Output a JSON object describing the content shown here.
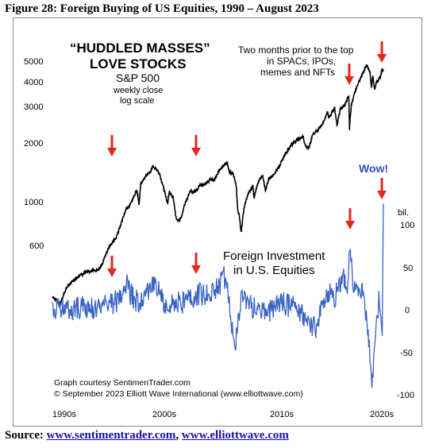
{
  "figure_title": "Figure 28: Foreign Buying of US Equities, 1990 – August 2023",
  "source": {
    "label": "Source:",
    "link1": "www.sentimentrader.com",
    "separator": ",",
    "link2": "www.elliottwave.com"
  },
  "annotations": {
    "headline_line1": "“HUDDLED MASSES”",
    "headline_line2": "LOVE STOCKS",
    "sp_label": "S&P 500",
    "sp_sub1": "weekly close",
    "sp_sub2": "log scale",
    "note_line1": "Two months prior to the top",
    "note_line2": "in SPACs, IPOs,",
    "note_line3": "memes and NFTs",
    "foreign_line1": "Foreign Investment",
    "foreign_line2": "in U.S. Equities",
    "wow": "Wow!",
    "credit_line1": "Graph courtesy SentimenTrader.com",
    "credit_line2": "© September 2023 Elliott Wave International (www.elliottwave.com)",
    "right_unit": "bil."
  },
  "colors": {
    "sp500": "#000000",
    "foreign": "#3a63c4",
    "arrows": "#e0281f",
    "wow": "#2f4fb8"
  },
  "chart_data": [
    {
      "type": "line",
      "scale": "log",
      "x_axis": {
        "range": [
          1990,
          2023.67
        ],
        "tick_labels": [
          "1990s",
          "2000s",
          "2010s",
          "2020s"
        ],
        "tick_values": [
          1990,
          2000,
          2010,
          2020
        ]
      },
      "y_axis": {
        "side": "left",
        "tick_values": [
          600,
          1000,
          2000,
          3000,
          4000,
          5000
        ],
        "tick_labels": [
          "600",
          "1000",
          "2000",
          "3000",
          "4000",
          "5000"
        ]
      },
      "series": [
        {
          "name": "S&P 500",
          "points": [
            [
              1990.0,
              340
            ],
            [
              1990.8,
              310
            ],
            [
              1991.5,
              380
            ],
            [
              1992.5,
              420
            ],
            [
              1993.5,
              450
            ],
            [
              1994.5,
              455
            ],
            [
              1995.0,
              480
            ],
            [
              1995.5,
              560
            ],
            [
              1996.0,
              620
            ],
            [
              1996.5,
              660
            ],
            [
              1997.0,
              780
            ],
            [
              1997.5,
              920
            ],
            [
              1998.0,
              980
            ],
            [
              1998.6,
              1150
            ],
            [
              1998.8,
              960
            ],
            [
              1999.0,
              1230
            ],
            [
              1999.5,
              1340
            ],
            [
              2000.0,
              1420
            ],
            [
              2000.2,
              1500
            ],
            [
              2000.5,
              1460
            ],
            [
              2000.8,
              1400
            ],
            [
              2001.0,
              1320
            ],
            [
              2001.3,
              1180
            ],
            [
              2001.7,
              980
            ],
            [
              2001.9,
              1120
            ],
            [
              2002.3,
              1050
            ],
            [
              2002.55,
              840
            ],
            [
              2002.8,
              800
            ],
            [
              2003.1,
              840
            ],
            [
              2003.5,
              980
            ],
            [
              2004.0,
              1130
            ],
            [
              2004.5,
              1120
            ],
            [
              2005.0,
              1200
            ],
            [
              2005.5,
              1220
            ],
            [
              2006.0,
              1280
            ],
            [
              2006.5,
              1290
            ],
            [
              2007.0,
              1440
            ],
            [
              2007.5,
              1530
            ],
            [
              2007.8,
              1560
            ],
            [
              2008.0,
              1400
            ],
            [
              2008.4,
              1380
            ],
            [
              2008.7,
              1200
            ],
            [
              2008.85,
              900
            ],
            [
              2009.0,
              870
            ],
            [
              2009.2,
              700
            ],
            [
              2009.5,
              930
            ],
            [
              2010.0,
              1120
            ],
            [
              2010.4,
              1200
            ],
            [
              2010.5,
              1050
            ],
            [
              2011.0,
              1280
            ],
            [
              2011.4,
              1340
            ],
            [
              2011.7,
              1130
            ],
            [
              2012.0,
              1300
            ],
            [
              2012.5,
              1360
            ],
            [
              2013.0,
              1480
            ],
            [
              2013.5,
              1650
            ],
            [
              2014.0,
              1830
            ],
            [
              2014.5,
              1960
            ],
            [
              2015.0,
              2050
            ],
            [
              2015.5,
              2100
            ],
            [
              2015.7,
              1900
            ],
            [
              2016.1,
              1860
            ],
            [
              2016.5,
              2150
            ],
            [
              2017.0,
              2270
            ],
            [
              2017.5,
              2450
            ],
            [
              2018.0,
              2800
            ],
            [
              2018.1,
              2600
            ],
            [
              2018.7,
              2920
            ],
            [
              2018.95,
              2400
            ],
            [
              2019.3,
              2900
            ],
            [
              2019.7,
              2980
            ],
            [
              2020.0,
              3250
            ],
            [
              2020.15,
              3380
            ],
            [
              2020.22,
              2300
            ],
            [
              2020.4,
              3000
            ],
            [
              2020.7,
              3400
            ],
            [
              2021.0,
              3750
            ],
            [
              2021.5,
              4300
            ],
            [
              2021.99,
              4790
            ],
            [
              2022.3,
              4400
            ],
            [
              2022.45,
              3700
            ],
            [
              2022.6,
              4200
            ],
            [
              2022.78,
              3600
            ],
            [
              2023.0,
              3950
            ],
            [
              2023.3,
              4100
            ],
            [
              2023.55,
              4550
            ],
            [
              2023.67,
              4460
            ]
          ]
        },
        {
          "name": "Foreign Investment in U.S. Equities",
          "y_axis": {
            "side": "right",
            "tick_values": [
              -100,
              -50,
              0,
              50,
              100
            ],
            "tick_labels": [
              "-100",
              "-50",
              "0",
              "50",
              "100"
            ]
          },
          "points": [
            [
              1990.0,
              0
            ],
            [
              1991.0,
              2
            ],
            [
              1992.0,
              0
            ],
            [
              1993.0,
              4
            ],
            [
              1994.0,
              2
            ],
            [
              1995.0,
              5
            ],
            [
              1996.0,
              8
            ],
            [
              1997.0,
              12
            ],
            [
              1997.6,
              28
            ],
            [
              1998.0,
              18
            ],
            [
              1998.8,
              8
            ],
            [
              1999.3,
              12
            ],
            [
              2000.0,
              25
            ],
            [
              2000.4,
              30
            ],
            [
              2001.0,
              15
            ],
            [
              2001.5,
              8
            ],
            [
              2002.0,
              10
            ],
            [
              2003.0,
              8
            ],
            [
              2004.0,
              12
            ],
            [
              2005.0,
              18
            ],
            [
              2006.0,
              20
            ],
            [
              2007.0,
              30
            ],
            [
              2007.4,
              42
            ],
            [
              2007.8,
              20
            ],
            [
              2008.0,
              5
            ],
            [
              2008.3,
              -20
            ],
            [
              2008.6,
              -40
            ],
            [
              2008.9,
              -10
            ],
            [
              2009.3,
              15
            ],
            [
              2010.0,
              5
            ],
            [
              2011.0,
              0
            ],
            [
              2012.0,
              -5
            ],
            [
              2013.0,
              10
            ],
            [
              2014.0,
              5
            ],
            [
              2015.0,
              0
            ],
            [
              2016.0,
              -15
            ],
            [
              2016.8,
              -20
            ],
            [
              2017.5,
              5
            ],
            [
              2018.0,
              20
            ],
            [
              2018.7,
              15
            ],
            [
              2019.0,
              25
            ],
            [
              2019.5,
              40
            ],
            [
              2020.0,
              30
            ],
            [
              2020.3,
              80
            ],
            [
              2020.5,
              40
            ],
            [
              2021.0,
              15
            ],
            [
              2021.4,
              25
            ],
            [
              2021.8,
              5
            ],
            [
              2022.0,
              -20
            ],
            [
              2022.3,
              -50
            ],
            [
              2022.5,
              -95
            ],
            [
              2022.8,
              -40
            ],
            [
              2023.0,
              -20
            ],
            [
              2023.2,
              10
            ],
            [
              2023.4,
              0
            ],
            [
              2023.55,
              -30
            ],
            [
              2023.67,
              125
            ]
          ]
        }
      ]
    }
  ]
}
